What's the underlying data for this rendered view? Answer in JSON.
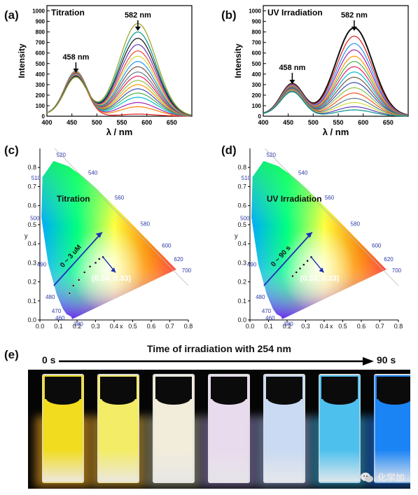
{
  "panels": {
    "a": {
      "label": "(a)",
      "title": "Titration",
      "peak1": "458 nm",
      "peak2": "582 nm"
    },
    "b": {
      "label": "(b)",
      "title": "UV Irradiation",
      "peak1": "458 nm",
      "peak2": "582 nm"
    },
    "c": {
      "label": "(c)",
      "title": "Titration",
      "range": "0 ~ 3 uM",
      "coord": "(0.34, 0.33)"
    },
    "d": {
      "label": "(d)",
      "title": "UV Irradiation",
      "range": "0 ~ 90 s",
      "coord": "(0.33, 0.33)"
    },
    "e": {
      "label": "(e)",
      "title": "Time of irradiation with 254 nm",
      "start": "0 s",
      "end": "90 s"
    }
  },
  "watermark": {
    "text": "化学加"
  },
  "cie_labels": {
    "wavelengths": [
      "520",
      "540",
      "560",
      "580",
      "600",
      "620",
      "700",
      "510",
      "500",
      "490",
      "480",
      "470",
      "460",
      "380"
    ],
    "x_ticks": [
      "0.0",
      "0.1",
      "0.2",
      "0.3",
      "0.4",
      "0.5",
      "0.6",
      "0.7",
      "0.8"
    ],
    "y_ticks": [
      "0.0",
      "0.1",
      "0.2",
      "0.3",
      "0.4",
      "0.5",
      "0.6",
      "0.7",
      "0.8"
    ],
    "xlabel": "x",
    "ylabel": "y"
  },
  "cuvette_colors": [
    "#f1dc1f",
    "#f3ec66",
    "#f2ecda",
    "#e9dbee",
    "#c9daf2",
    "#4ec0ee",
    "#1a84f5"
  ],
  "cuvette_glows": [
    "#c98b1d",
    "#b88a2a",
    "#8a8a70",
    "#7a6a9a",
    "#7a8ab0",
    "#2a8ab0",
    "#1a60c0"
  ],
  "chart_data": [
    {
      "type": "line",
      "title": "Titration",
      "xlabel": "λ / nm",
      "ylabel": "Intensity",
      "xlim": [
        400,
        690
      ],
      "ylim": [
        0,
        1050
      ],
      "x_ticks": [
        400,
        450,
        500,
        550,
        600,
        650
      ],
      "y_ticks": [
        0,
        100,
        200,
        300,
        400,
        500,
        600,
        700,
        800,
        900,
        1000
      ],
      "peaks": [
        458,
        582
      ],
      "series": [
        {
          "color": "#e41a1c",
          "peak_blue": 390,
          "peak_orange": 20
        },
        {
          "color": "#ff7f00",
          "peak_blue": 400,
          "peak_orange": 90
        },
        {
          "color": "#9c27b0",
          "peak_blue": 410,
          "peak_orange": 130
        },
        {
          "color": "#00bcd4",
          "peak_blue": 415,
          "peak_orange": 180
        },
        {
          "color": "#4caf50",
          "peak_blue": 420,
          "peak_orange": 220
        },
        {
          "color": "#3f51b5",
          "peak_blue": 420,
          "peak_orange": 260
        },
        {
          "color": "#ff9800",
          "peak_blue": 415,
          "peak_orange": 300
        },
        {
          "color": "#8bc34a",
          "peak_blue": 410,
          "peak_orange": 340
        },
        {
          "color": "#e91e63",
          "peak_blue": 405,
          "peak_orange": 380
        },
        {
          "color": "#607d8b",
          "peak_blue": 400,
          "peak_orange": 420
        },
        {
          "color": "#795548",
          "peak_blue": 395,
          "peak_orange": 470
        },
        {
          "color": "#2196f3",
          "peak_blue": 390,
          "peak_orange": 520
        },
        {
          "color": "#cddc39",
          "peak_blue": 385,
          "peak_orange": 570
        },
        {
          "color": "#f44336",
          "peak_blue": 380,
          "peak_orange": 620
        },
        {
          "color": "#673ab7",
          "peak_blue": 375,
          "peak_orange": 680
        },
        {
          "color": "#111111",
          "peak_blue": 370,
          "peak_orange": 740
        },
        {
          "color": "#009688",
          "peak_blue": 365,
          "peak_orange": 800
        },
        {
          "color": "#9e9d24",
          "peak_blue": 360,
          "peak_orange": 880
        }
      ]
    },
    {
      "type": "line",
      "title": "UV Irradiation",
      "xlabel": "λ / nm",
      "ylabel": "Intensity",
      "xlim": [
        400,
        690
      ],
      "ylim": [
        0,
        1050
      ],
      "x_ticks": [
        400,
        450,
        500,
        550,
        600,
        650
      ],
      "y_ticks": [
        0,
        100,
        200,
        300,
        400,
        500,
        600,
        700,
        800,
        900,
        1000
      ],
      "peaks": [
        458,
        582
      ],
      "series": [
        {
          "color": "#111111",
          "peak_blue": 300,
          "peak_orange": 840
        },
        {
          "color": "#e41a1c",
          "peak_blue": 295,
          "peak_orange": 760
        },
        {
          "color": "#2196f3",
          "peak_blue": 290,
          "peak_orange": 690
        },
        {
          "color": "#9c27b0",
          "peak_blue": 285,
          "peak_orange": 630
        },
        {
          "color": "#ff9800",
          "peak_blue": 280,
          "peak_orange": 570
        },
        {
          "color": "#4caf50",
          "peak_blue": 275,
          "peak_orange": 520
        },
        {
          "color": "#e91e63",
          "peak_blue": 270,
          "peak_orange": 470
        },
        {
          "color": "#00bcd4",
          "peak_blue": 265,
          "peak_orange": 420
        },
        {
          "color": "#795548",
          "peak_blue": 260,
          "peak_orange": 370
        },
        {
          "color": "#3f51b5",
          "peak_blue": 255,
          "peak_orange": 320
        },
        {
          "color": "#8bc34a",
          "peak_blue": 250,
          "peak_orange": 270
        },
        {
          "color": "#ff5722",
          "peak_blue": 245,
          "peak_orange": 220
        },
        {
          "color": "#607d8b",
          "peak_blue": 240,
          "peak_orange": 170
        },
        {
          "color": "#cddc39",
          "peak_blue": 235,
          "peak_orange": 130
        },
        {
          "color": "#673ab7",
          "peak_blue": 230,
          "peak_orange": 90
        },
        {
          "color": "#009688",
          "peak_blue": 225,
          "peak_orange": 60
        }
      ]
    },
    {
      "type": "scatter",
      "title": "Titration",
      "xlabel": "x",
      "ylabel": "y",
      "xlim": [
        0,
        0.8
      ],
      "ylim": [
        0,
        0.9
      ],
      "x": [
        0.16,
        0.18,
        0.21,
        0.24,
        0.27,
        0.3,
        0.32,
        0.34
      ],
      "y": [
        0.14,
        0.18,
        0.21,
        0.25,
        0.28,
        0.3,
        0.32,
        0.33
      ]
    },
    {
      "type": "scatter",
      "title": "UV Irradiation",
      "xlabel": "x",
      "ylabel": "y",
      "xlim": [
        0,
        0.8
      ],
      "ylim": [
        0,
        0.9
      ],
      "x": [
        0.23,
        0.25,
        0.27,
        0.29,
        0.31,
        0.33
      ],
      "y": [
        0.23,
        0.25,
        0.27,
        0.29,
        0.31,
        0.33
      ]
    }
  ]
}
